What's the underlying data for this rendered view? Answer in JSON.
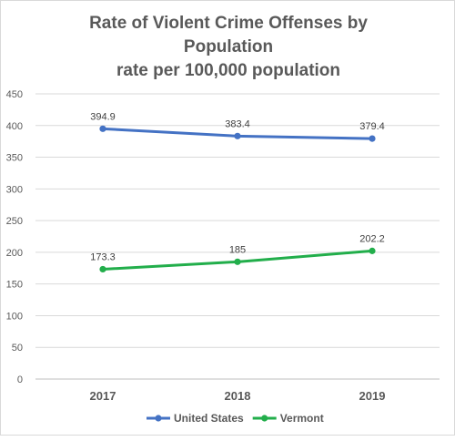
{
  "chart_data": {
    "type": "line",
    "title_lines": [
      "Rate of Violent Crime Offenses by",
      "Population",
      "rate per 100,000 population"
    ],
    "categories": [
      "2017",
      "2018",
      "2019"
    ],
    "ylim": [
      0,
      450
    ],
    "yticks": [
      0,
      50,
      100,
      150,
      200,
      250,
      300,
      350,
      400,
      450
    ],
    "grid": true,
    "legend_position": "bottom",
    "series": [
      {
        "name": "United States",
        "values": [
          394.9,
          383.4,
          379.4
        ],
        "labels": [
          "394.9",
          "383.4",
          "379.4"
        ],
        "color": "#4472C4"
      },
      {
        "name": "Vermont",
        "values": [
          173.3,
          185,
          202.2
        ],
        "labels": [
          "173.3",
          "185",
          "202.2"
        ],
        "color": "#22AE4B"
      }
    ]
  }
}
